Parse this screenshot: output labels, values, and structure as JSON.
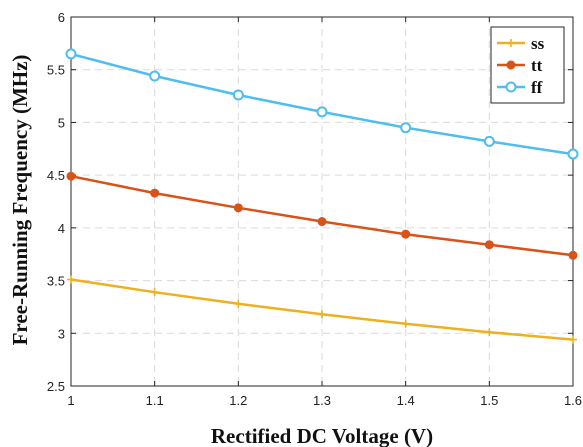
{
  "chart_data": {
    "type": "line",
    "xlabel": "Rectified DC Voltage (V)",
    "ylabel": "Free-Running Frequency (MHz)",
    "xlim": [
      1,
      1.6
    ],
    "ylim": [
      2.5,
      6
    ],
    "x_ticks": [
      "1",
      "1.1",
      "1.2",
      "1.3",
      "1.4",
      "1.5",
      "1.6"
    ],
    "y_ticks": [
      "2.5",
      "3",
      "3.5",
      "4",
      "4.5",
      "5",
      "5.5",
      "6"
    ],
    "grid": true,
    "legend_position": "top-right",
    "x": [
      1.0,
      1.1,
      1.2,
      1.3,
      1.4,
      1.5,
      1.6
    ],
    "series": [
      {
        "name": "ss",
        "color": "#EDB120",
        "marker": "plus",
        "values": [
          3.51,
          3.39,
          3.28,
          3.18,
          3.09,
          3.01,
          2.94
        ]
      },
      {
        "name": "tt",
        "color": "#D95319",
        "marker": "dot",
        "values": [
          4.49,
          4.33,
          4.19,
          4.06,
          3.94,
          3.84,
          3.74
        ]
      },
      {
        "name": "ff",
        "color": "#4DBEEE",
        "marker": "circle",
        "values": [
          5.65,
          5.44,
          5.26,
          5.1,
          4.95,
          4.82,
          4.7
        ]
      }
    ]
  }
}
